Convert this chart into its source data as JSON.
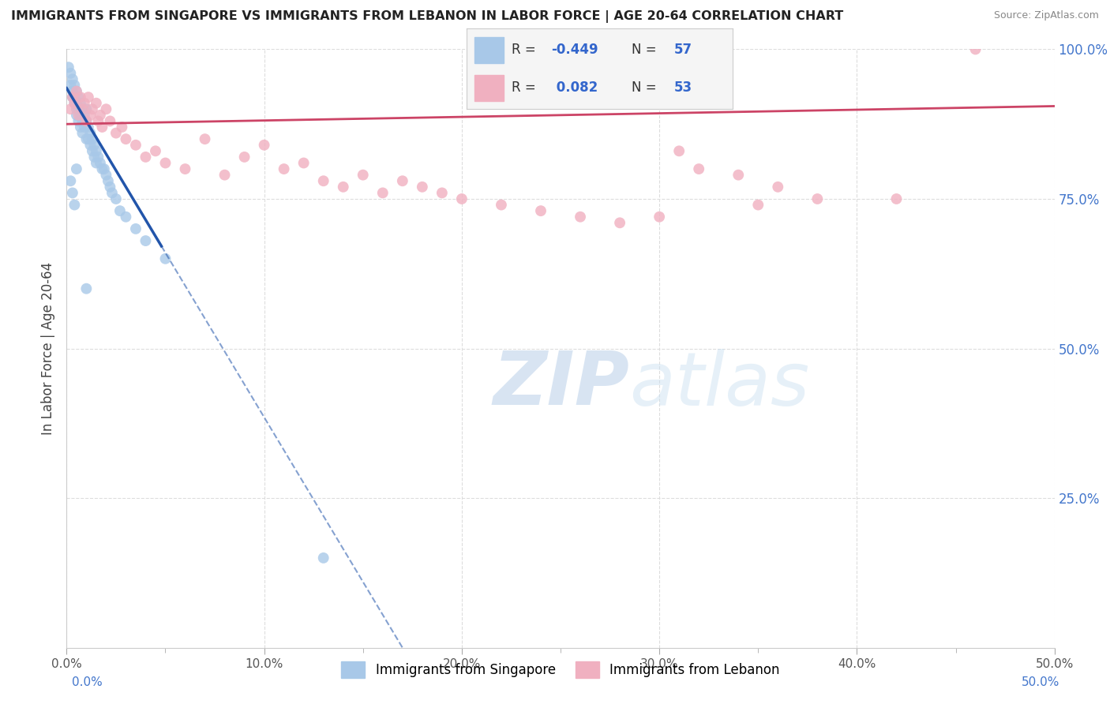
{
  "title": "IMMIGRANTS FROM SINGAPORE VS IMMIGRANTS FROM LEBANON IN LABOR FORCE | AGE 20-64 CORRELATION CHART",
  "source_text": "Source: ZipAtlas.com",
  "ylabel": "In Labor Force | Age 20-64",
  "xlim": [
    0.0,
    0.5
  ],
  "ylim": [
    0.0,
    1.0
  ],
  "xtick_major": [
    0.0,
    0.1,
    0.2,
    0.3,
    0.4,
    0.5
  ],
  "xtick_minor": [
    0.05,
    0.15,
    0.25,
    0.35,
    0.45
  ],
  "xtick_major_labels": [
    "0.0%",
    "10.0%",
    "20.0%",
    "30.0%",
    "40.0%",
    "50.0%"
  ],
  "ytick_vals": [
    0.25,
    0.5,
    0.75,
    1.0
  ],
  "ytick_labels": [
    "25.0%",
    "50.0%",
    "75.0%",
    "100.0%"
  ],
  "blue_color": "#a8c8e8",
  "blue_line_color": "#2255aa",
  "pink_color": "#f0b0c0",
  "pink_line_color": "#cc4466",
  "R_blue": -0.449,
  "N_blue": 57,
  "R_pink": 0.082,
  "N_pink": 53,
  "legend_text_color": "#3366cc",
  "watermark": "ZIPatlas",
  "watermark_color": "#c8dff0",
  "blue_scatter_x": [
    0.001,
    0.002,
    0.002,
    0.003,
    0.003,
    0.003,
    0.004,
    0.004,
    0.004,
    0.005,
    0.005,
    0.005,
    0.005,
    0.006,
    0.006,
    0.006,
    0.007,
    0.007,
    0.007,
    0.008,
    0.008,
    0.008,
    0.009,
    0.009,
    0.01,
    0.01,
    0.01,
    0.011,
    0.011,
    0.012,
    0.012,
    0.013,
    0.013,
    0.014,
    0.014,
    0.015,
    0.015,
    0.016,
    0.017,
    0.018,
    0.019,
    0.02,
    0.021,
    0.022,
    0.023,
    0.025,
    0.027,
    0.03,
    0.035,
    0.04,
    0.05,
    0.002,
    0.003,
    0.004,
    0.005,
    0.01,
    0.13
  ],
  "blue_scatter_y": [
    0.97,
    0.96,
    0.94,
    0.95,
    0.93,
    0.92,
    0.94,
    0.92,
    0.91,
    0.93,
    0.91,
    0.9,
    0.89,
    0.92,
    0.9,
    0.88,
    0.91,
    0.89,
    0.87,
    0.9,
    0.88,
    0.86,
    0.89,
    0.87,
    0.9,
    0.88,
    0.85,
    0.87,
    0.85,
    0.86,
    0.84,
    0.85,
    0.83,
    0.84,
    0.82,
    0.83,
    0.81,
    0.82,
    0.81,
    0.8,
    0.8,
    0.79,
    0.78,
    0.77,
    0.76,
    0.75,
    0.73,
    0.72,
    0.7,
    0.68,
    0.65,
    0.78,
    0.76,
    0.74,
    0.8,
    0.6,
    0.15
  ],
  "pink_scatter_x": [
    0.002,
    0.003,
    0.004,
    0.005,
    0.006,
    0.007,
    0.008,
    0.009,
    0.01,
    0.011,
    0.012,
    0.013,
    0.015,
    0.016,
    0.017,
    0.018,
    0.02,
    0.022,
    0.025,
    0.028,
    0.03,
    0.035,
    0.04,
    0.045,
    0.05,
    0.06,
    0.07,
    0.08,
    0.09,
    0.1,
    0.11,
    0.12,
    0.13,
    0.14,
    0.15,
    0.16,
    0.17,
    0.18,
    0.19,
    0.2,
    0.22,
    0.24,
    0.26,
    0.28,
    0.3,
    0.31,
    0.32,
    0.34,
    0.35,
    0.36,
    0.38,
    0.42,
    0.46
  ],
  "pink_scatter_y": [
    0.9,
    0.92,
    0.91,
    0.93,
    0.89,
    0.92,
    0.9,
    0.91,
    0.88,
    0.92,
    0.89,
    0.9,
    0.91,
    0.88,
    0.89,
    0.87,
    0.9,
    0.88,
    0.86,
    0.87,
    0.85,
    0.84,
    0.82,
    0.83,
    0.81,
    0.8,
    0.85,
    0.79,
    0.82,
    0.84,
    0.8,
    0.81,
    0.78,
    0.77,
    0.79,
    0.76,
    0.78,
    0.77,
    0.76,
    0.75,
    0.74,
    0.73,
    0.72,
    0.71,
    0.72,
    0.83,
    0.8,
    0.79,
    0.74,
    0.77,
    0.75,
    0.75,
    1.0
  ],
  "blue_line_start_x": 0.0,
  "blue_line_solid_end_x": 0.048,
  "blue_line_dashed_end_x": 0.36,
  "pink_line_start_x": 0.0,
  "pink_line_end_x": 0.5,
  "background_color": "#ffffff",
  "grid_color": "#dddddd"
}
